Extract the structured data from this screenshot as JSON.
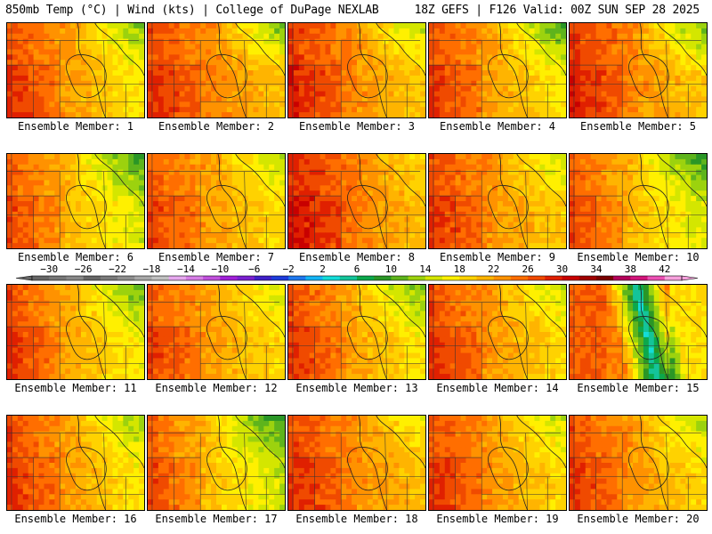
{
  "header": {
    "left": "850mb Temp (°C) | Wind (kts) | College of DuPage NEXLAB",
    "right": "18Z GEFS | F126 Valid: 00Z SUN SEP 28 2025"
  },
  "legend": {
    "title": "850mb Temp (°C)",
    "tick_labels": [
      "-30",
      "-26",
      "-22",
      "-18",
      "-14",
      "-10",
      "-6",
      "-2",
      "2",
      "6",
      "10",
      "14",
      "18",
      "22",
      "26",
      "30",
      "34",
      "38",
      "42"
    ],
    "bins": [
      {
        "min": -32,
        "color": "#666666"
      },
      {
        "min": -30,
        "color": "#777777"
      },
      {
        "min": -28,
        "color": "#888888"
      },
      {
        "min": -26,
        "color": "#666666"
      },
      {
        "min": -24,
        "color": "#7a7a7a"
      },
      {
        "min": -22,
        "color": "#8e8e8e"
      },
      {
        "min": -20,
        "color": "#a8a8a8"
      },
      {
        "min": -18,
        "color": "#c0c0c0"
      },
      {
        "min": -16,
        "color": "#e6a8ee"
      },
      {
        "min": -14,
        "color": "#d67ee6"
      },
      {
        "min": -12,
        "color": "#c050dc"
      },
      {
        "min": -10,
        "color": "#a020d8"
      },
      {
        "min": -8,
        "color": "#7a20d0"
      },
      {
        "min": -6,
        "color": "#4020c8"
      },
      {
        "min": -4,
        "color": "#1e3cdc"
      },
      {
        "min": -2,
        "color": "#1e78ee"
      },
      {
        "min": 0,
        "color": "#14b4f4"
      },
      {
        "min": 2,
        "color": "#14dcd8"
      },
      {
        "min": 4,
        "color": "#14c49a"
      },
      {
        "min": 6,
        "color": "#0ca84c"
      },
      {
        "min": 8,
        "color": "#2a9626"
      },
      {
        "min": 10,
        "color": "#5eb41c"
      },
      {
        "min": 12,
        "color": "#9cd20e"
      },
      {
        "min": 14,
        "color": "#d4e600"
      },
      {
        "min": 16,
        "color": "#fff000"
      },
      {
        "min": 18,
        "color": "#ffd200"
      },
      {
        "min": 20,
        "color": "#ffb400"
      },
      {
        "min": 22,
        "color": "#ff9200"
      },
      {
        "min": 24,
        "color": "#ff6e00"
      },
      {
        "min": 26,
        "color": "#f04a00"
      },
      {
        "min": 28,
        "color": "#e02000"
      },
      {
        "min": 30,
        "color": "#c80000"
      },
      {
        "min": 32,
        "color": "#a00000"
      },
      {
        "min": 34,
        "color": "#7a0000"
      },
      {
        "min": 36,
        "color": "#b4005a"
      },
      {
        "min": 38,
        "color": "#d2147a"
      },
      {
        "min": 40,
        "color": "#ec50b4"
      },
      {
        "min": 42,
        "color": "#f6a0dc"
      }
    ]
  },
  "members": [
    {
      "label": "Ensemble Member: 1",
      "t_west": 27,
      "t_east": 17,
      "t_ne": 12,
      "cool_shift": 0
    },
    {
      "label": "Ensemble Member: 2",
      "t_west": 27,
      "t_east": 20,
      "t_ne": 11,
      "cool_shift": 0
    },
    {
      "label": "Ensemble Member: 3",
      "t_west": 28,
      "t_east": 19,
      "t_ne": 14,
      "cool_shift": 0
    },
    {
      "label": "Ensemble Member: 4",
      "t_west": 27,
      "t_east": 17,
      "t_ne": 10,
      "cool_shift": 0
    },
    {
      "label": "Ensemble Member: 5",
      "t_west": 28,
      "t_east": 19,
      "t_ne": 11,
      "cool_shift": 0
    },
    {
      "label": "Ensemble Member: 6",
      "t_west": 26,
      "t_east": 15,
      "t_ne": 9,
      "cool_shift": 0
    },
    {
      "label": "Ensemble Member: 7",
      "t_west": 26,
      "t_east": 18,
      "t_ne": 14,
      "cool_shift": 0
    },
    {
      "label": "Ensemble Member: 8",
      "t_west": 29,
      "t_east": 20,
      "t_ne": 18,
      "cool_shift": 0
    },
    {
      "label": "Ensemble Member: 9",
      "t_west": 27,
      "t_east": 19,
      "t_ne": 14,
      "cool_shift": 0
    },
    {
      "label": "Ensemble Member: 10",
      "t_west": 26,
      "t_east": 15,
      "t_ne": 9,
      "cool_shift": 0
    },
    {
      "label": "Ensemble Member: 11",
      "t_west": 27,
      "t_east": 16,
      "t_ne": 11,
      "cool_shift": 0
    },
    {
      "label": "Ensemble Member: 12",
      "t_west": 26,
      "t_east": 18,
      "t_ne": 15,
      "cool_shift": 0
    },
    {
      "label": "Ensemble Member: 13",
      "t_west": 27,
      "t_east": 17,
      "t_ne": 11,
      "cool_shift": 0
    },
    {
      "label": "Ensemble Member: 14",
      "t_west": 27,
      "t_east": 18,
      "t_ne": 14,
      "cool_shift": 0
    },
    {
      "label": "Ensemble Member: 15",
      "t_west": 24,
      "t_east": 4,
      "t_ne": 6,
      "cool_shift": 1
    },
    {
      "label": "Ensemble Member: 16",
      "t_west": 27,
      "t_east": 17,
      "t_ne": 13,
      "cool_shift": 0
    },
    {
      "label": "Ensemble Member: 17",
      "t_west": 26,
      "t_east": 14,
      "t_ne": 9,
      "cool_shift": 0
    },
    {
      "label": "Ensemble Member: 18",
      "t_west": 27,
      "t_east": 20,
      "t_ne": 16,
      "cool_shift": 0
    },
    {
      "label": "Ensemble Member: 19",
      "t_west": 27,
      "t_east": 18,
      "t_ne": 14,
      "cool_shift": 0
    },
    {
      "label": "Ensemble Member: 20",
      "t_west": 27,
      "t_east": 18,
      "t_ne": 13,
      "cool_shift": 0
    }
  ]
}
